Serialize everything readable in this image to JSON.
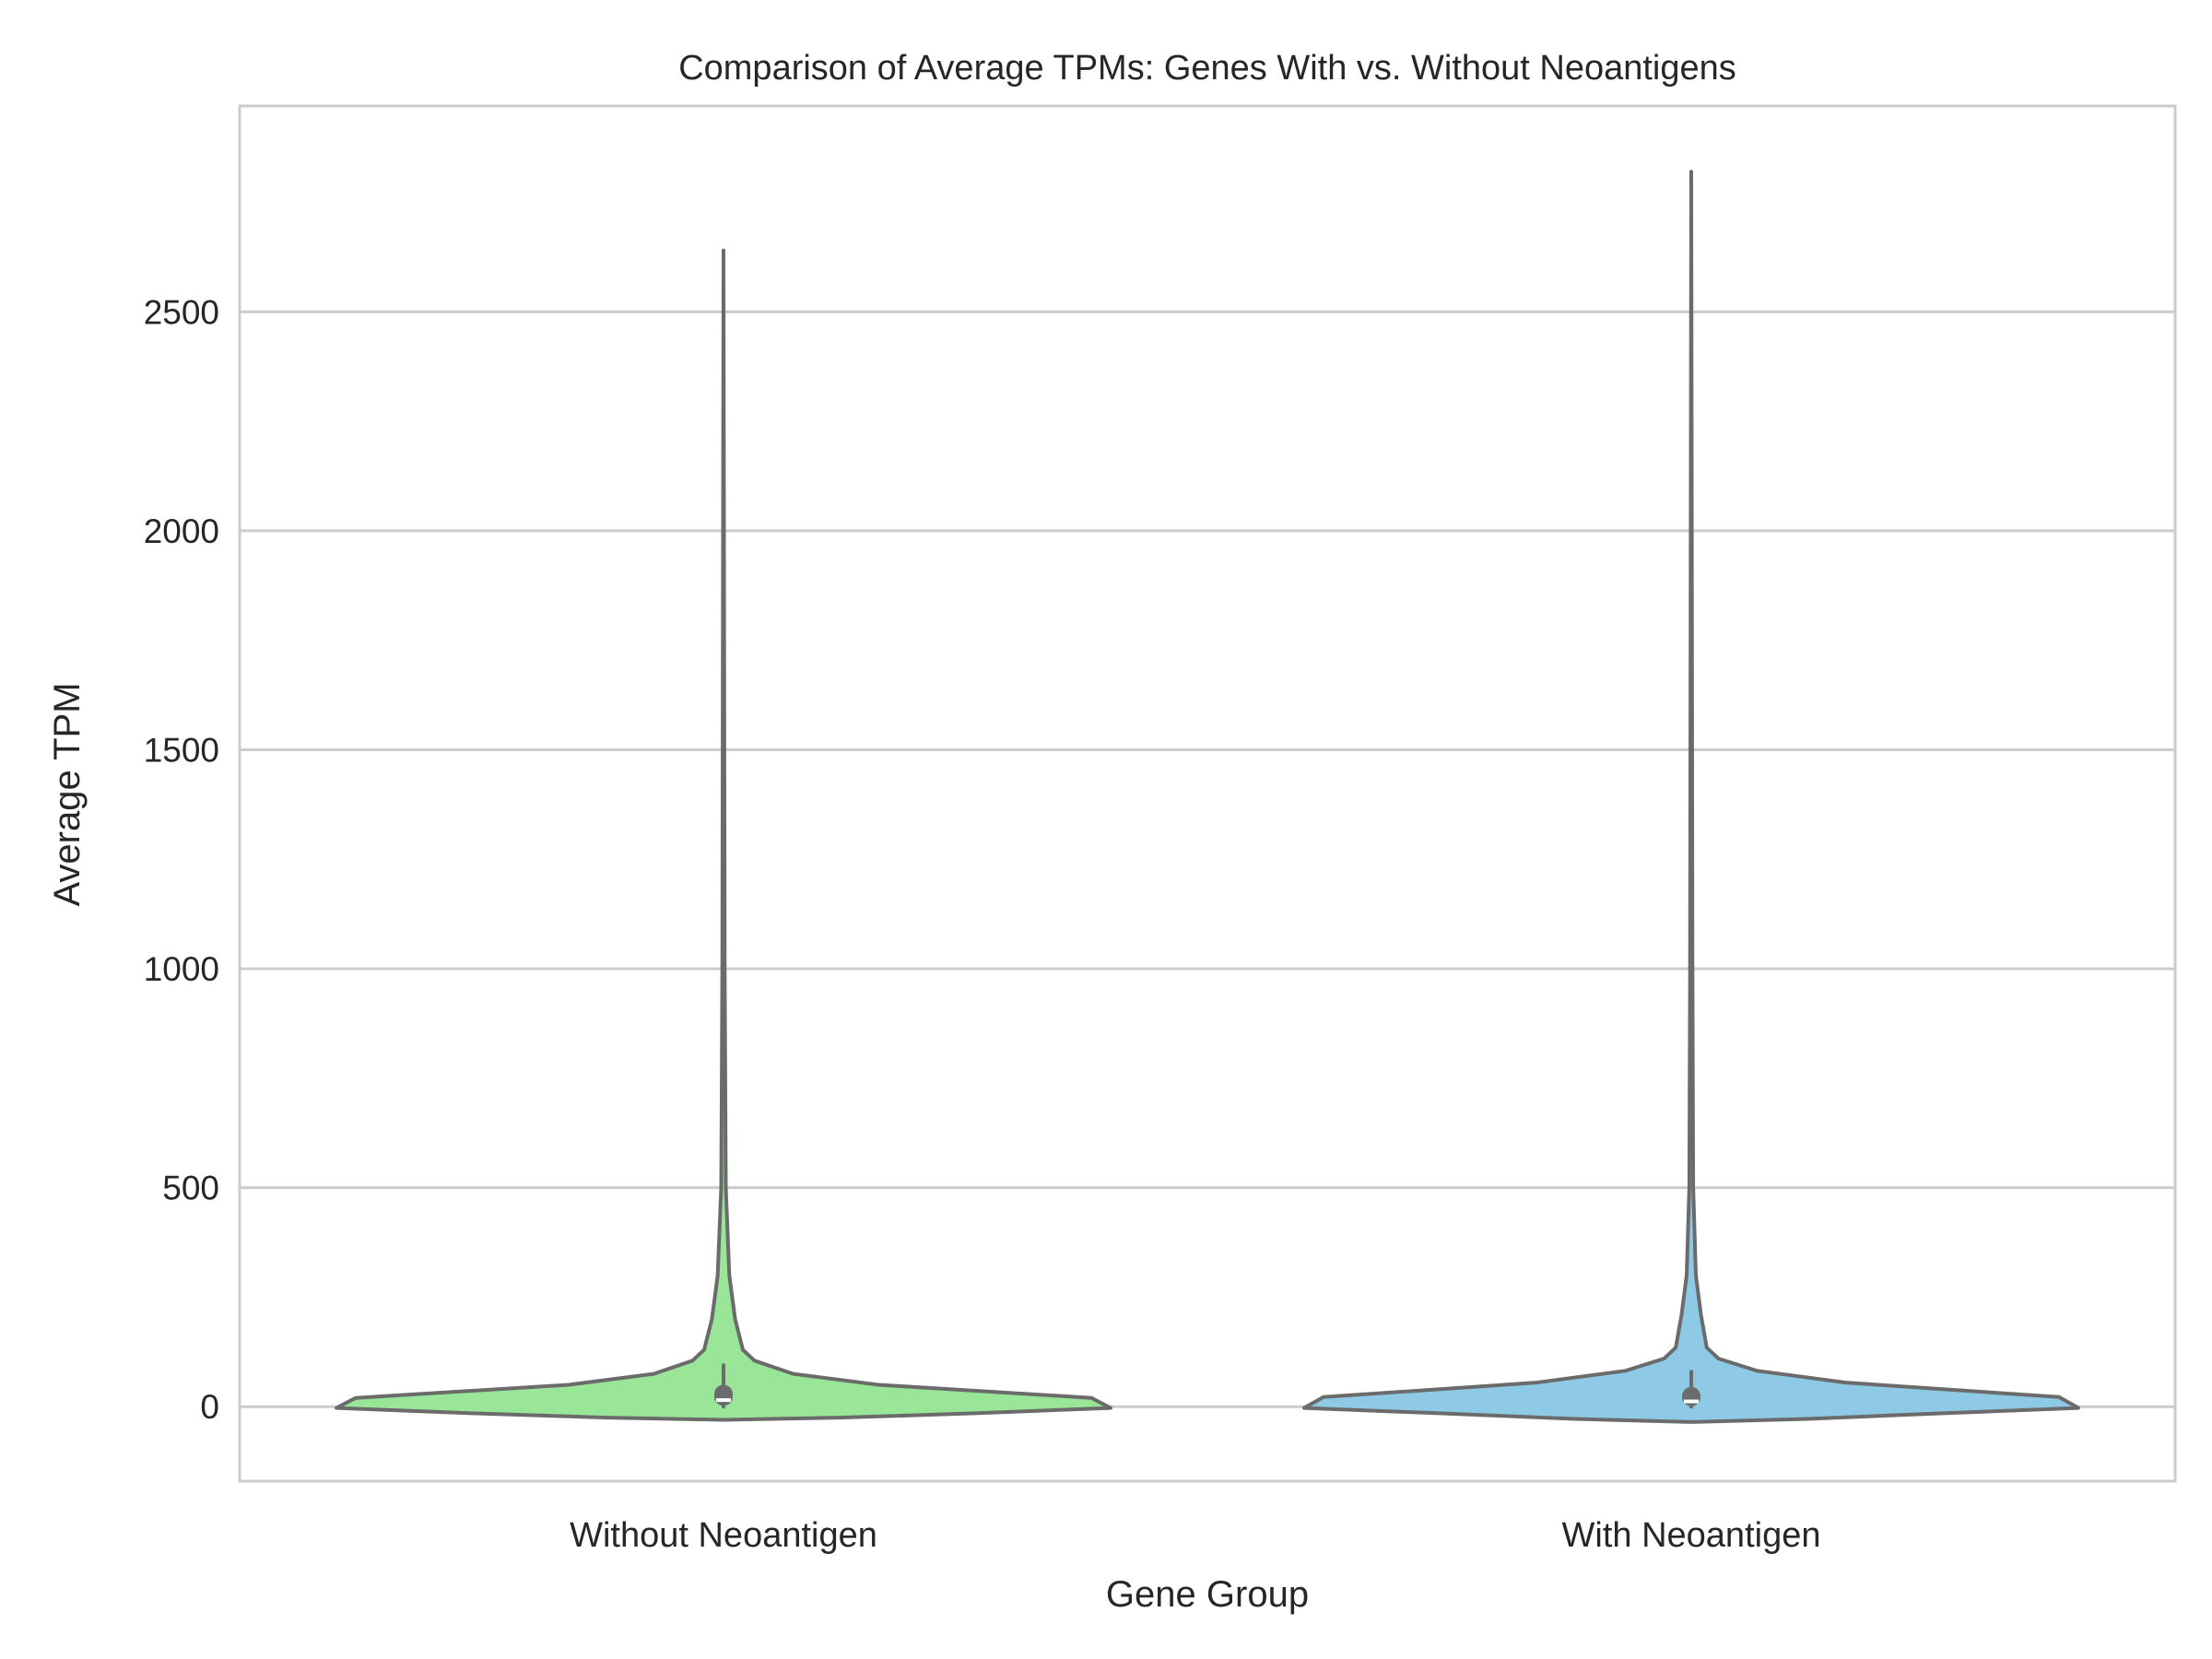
{
  "chart_data": {
    "type": "violin",
    "title": "Comparison of Average TPMs: Genes With vs. Without Neoantigens",
    "xlabel": "Gene Group",
    "ylabel": "Average TPM",
    "ylim": [
      -170,
      2970
    ],
    "yticks": [
      0,
      500,
      1000,
      1500,
      2000,
      2500
    ],
    "ytick_labels": [
      "0",
      "500",
      "1000",
      "1500",
      "2000",
      "2500"
    ],
    "grid": "horizontal",
    "categories": [
      "Without Neoantigen",
      "With Neoantigen"
    ],
    "series": [
      {
        "name": "Without Neoantigen",
        "color": "#99e699",
        "min": 0,
        "q1": 2,
        "median": 15,
        "q3": 50,
        "whisker_high": 95,
        "max": 2640,
        "density_profile": [
          {
            "tpm": -30,
            "width": 0.0
          },
          {
            "tpm": -25,
            "width": 0.3
          },
          {
            "tpm": -15,
            "width": 0.65
          },
          {
            "tpm": -3,
            "width": 1.0
          },
          {
            "tpm": 20,
            "width": 0.95
          },
          {
            "tpm": 50,
            "width": 0.4
          },
          {
            "tpm": 75,
            "width": 0.18
          },
          {
            "tpm": 105,
            "width": 0.08
          },
          {
            "tpm": 130,
            "width": 0.05
          },
          {
            "tpm": 200,
            "width": 0.03
          },
          {
            "tpm": 300,
            "width": 0.015
          },
          {
            "tpm": 500,
            "width": 0.006
          },
          {
            "tpm": 1000,
            "width": 0.003
          },
          {
            "tpm": 2640,
            "width": 0.0
          }
        ]
      },
      {
        "name": "With Neoantigen",
        "color": "#8ecae6",
        "min": 0,
        "q1": 1,
        "median": 12,
        "q3": 45,
        "whisker_high": 80,
        "max": 2820,
        "density_profile": [
          {
            "tpm": -35,
            "width": 0.0
          },
          {
            "tpm": -28,
            "width": 0.3
          },
          {
            "tpm": -15,
            "width": 0.65
          },
          {
            "tpm": -3,
            "width": 1.0
          },
          {
            "tpm": 22,
            "width": 0.95
          },
          {
            "tpm": 55,
            "width": 0.4
          },
          {
            "tpm": 82,
            "width": 0.17
          },
          {
            "tpm": 110,
            "width": 0.07
          },
          {
            "tpm": 135,
            "width": 0.04
          },
          {
            "tpm": 210,
            "width": 0.025
          },
          {
            "tpm": 300,
            "width": 0.012
          },
          {
            "tpm": 500,
            "width": 0.005
          },
          {
            "tpm": 1000,
            "width": 0.003
          },
          {
            "tpm": 2820,
            "width": 0.0
          }
        ]
      }
    ]
  }
}
